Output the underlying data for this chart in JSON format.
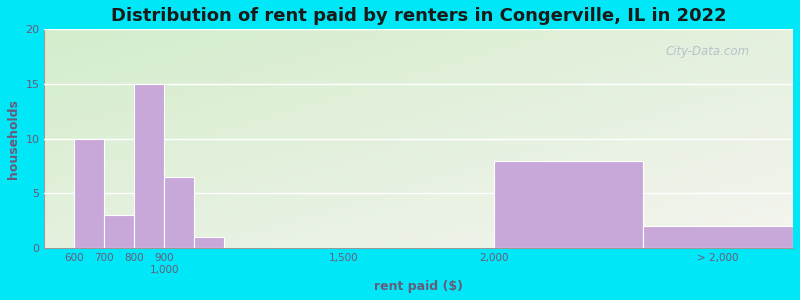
{
  "title": "Distribution of rent paid by renters in Congerville, IL in 2022",
  "xlabel": "rent paid ($)",
  "ylabel": "households",
  "bar_labels": [
    "600",
    "700",
    "800",
    "900",
    "1,000",
    "1,500",
    "2,000",
    "> 2,000"
  ],
  "bar_values": [
    10,
    3,
    15,
    6.5,
    1,
    0,
    8,
    2
  ],
  "bar_color": "#c8a8d8",
  "ylim": [
    0,
    20
  ],
  "yticks": [
    0,
    5,
    10,
    15,
    20
  ],
  "background_outer": "#00e8f8",
  "title_fontsize": 13,
  "axis_label_color": "#6a5a7a",
  "tick_label_color": "#6a5a7a",
  "watermark": "City-Data.com",
  "x_numeric": [
    600,
    700,
    800,
    900,
    1000,
    1500,
    2000,
    2500
  ],
  "bar_widths_numeric": [
    100,
    100,
    100,
    100,
    100,
    100,
    500,
    500
  ],
  "xlim": [
    500,
    3000
  ],
  "xtick_positions": [
    600,
    700,
    800,
    900,
    1000,
    1500,
    2000,
    2750
  ],
  "xtick_labels": [
    "600",
    "700",
    "800",
    "900\n1,000",
    "",
    "1,500",
    "2,000",
    "> 2,000"
  ]
}
